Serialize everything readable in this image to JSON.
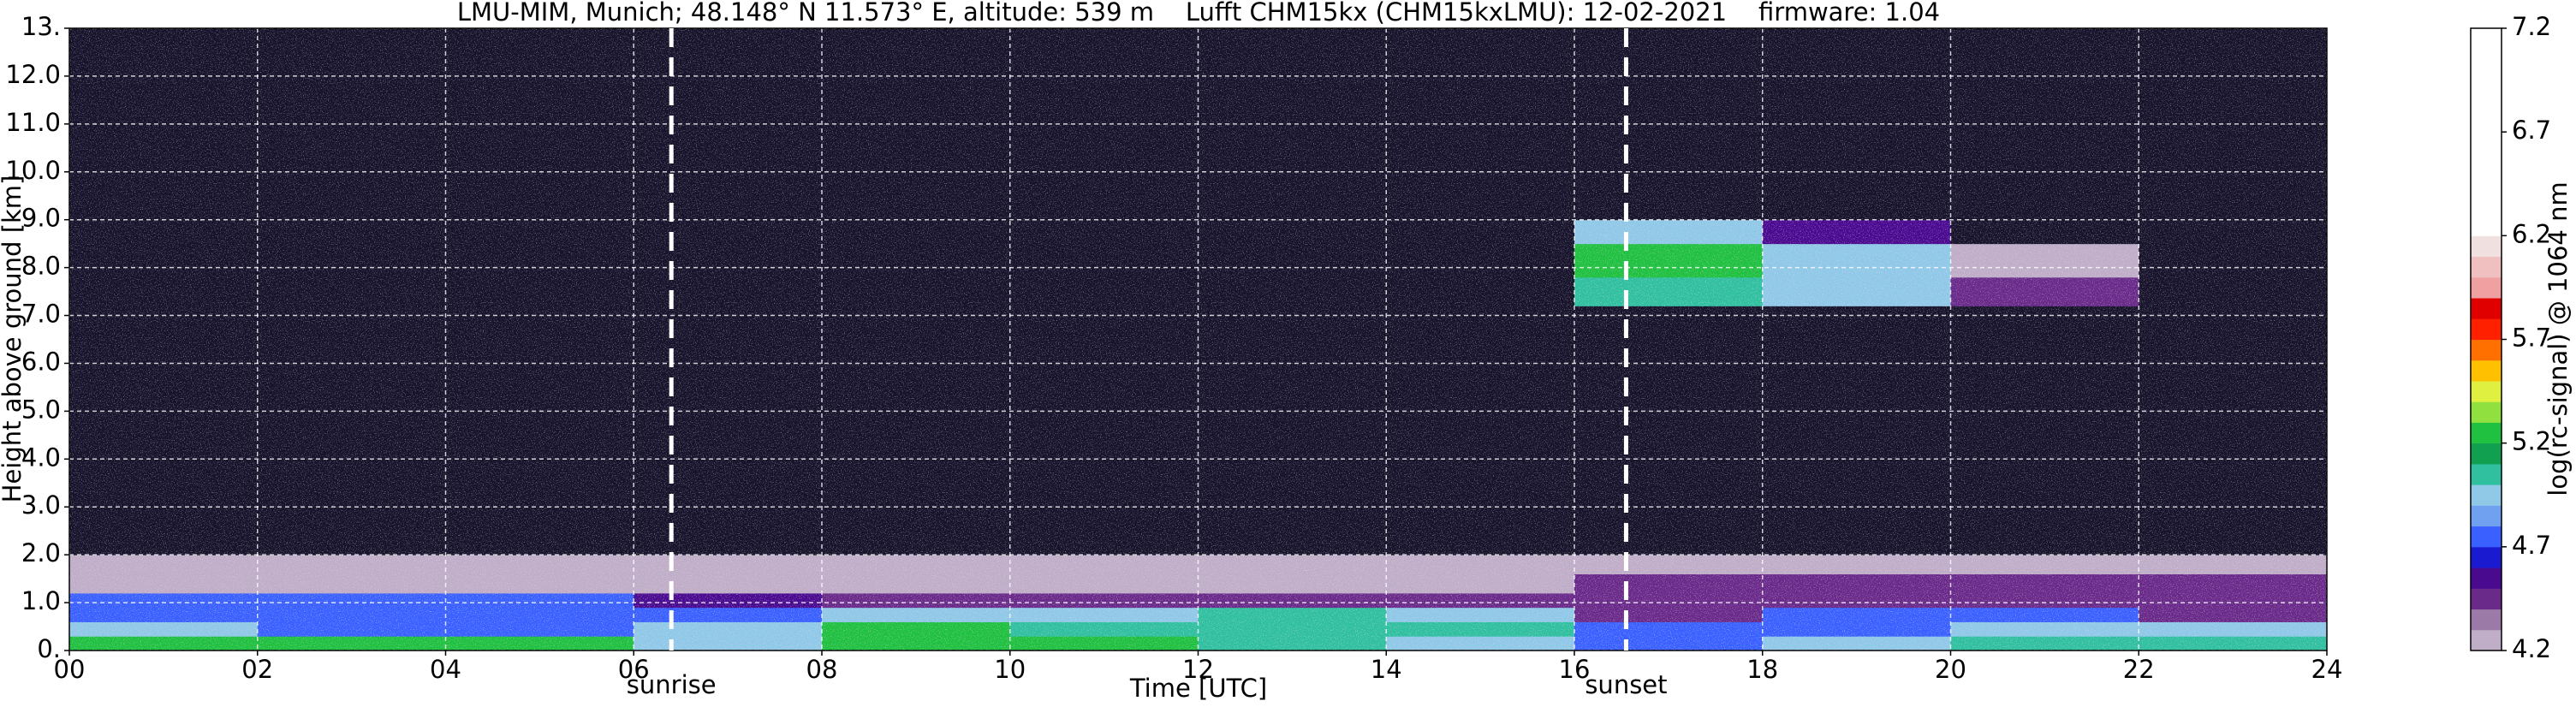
{
  "chart_data": {
    "type": "heatmap",
    "title": "LMU-MIM, Munich; 48.148° N 11.573° E, altitude: 539 m    Lufft CHM15kx (CHM15kxLMU): 12-02-2021    firmware: 1.04",
    "x_label": "Time [UTC]",
    "y_label": "Height above ground [km]",
    "colorbar_label": "log(rc-signal) @ 1064 nm",
    "xlim": [
      0,
      24
    ],
    "ylim": [
      0,
      13
    ],
    "xticks": [
      {
        "value": 0,
        "label": "00"
      },
      {
        "value": 2,
        "label": "02"
      },
      {
        "value": 4,
        "label": "04"
      },
      {
        "value": 6,
        "label": "06"
      },
      {
        "value": 8,
        "label": "08"
      },
      10,
      12,
      14,
      16,
      18,
      20,
      22,
      24
    ],
    "yticks": [
      {
        "value": 0,
        "label": "0."
      },
      {
        "value": 1,
        "label": "1.0"
      },
      {
        "value": 2,
        "label": "2.0"
      },
      {
        "value": 3,
        "label": "3.0"
      },
      {
        "value": 4,
        "label": "4.0"
      },
      {
        "value": 5,
        "label": "5.0"
      },
      {
        "value": 6,
        "label": "6.0"
      },
      {
        "value": 7,
        "label": "7.0"
      },
      {
        "value": 8,
        "label": "8.0"
      },
      {
        "value": 9,
        "label": "9.0"
      },
      {
        "value": 10,
        "label": "10.0"
      },
      {
        "value": 11,
        "label": "11.0"
      },
      {
        "value": 12,
        "label": "12.0"
      },
      {
        "value": 13,
        "label": "13."
      }
    ],
    "grid": true,
    "x_edges": [
      0,
      2,
      4,
      6,
      8,
      10,
      12,
      14,
      16,
      18,
      20,
      22,
      24
    ],
    "y_edges": [
      0,
      0.3,
      0.6,
      0.9,
      1.2,
      1.6,
      2,
      3,
      7.2,
      7.8,
      8.5,
      9,
      13
    ],
    "values": [
      [
        5.3,
        5.3,
        5.2,
        5.0,
        5.2,
        5.2,
        5.1,
        5.0,
        4.8,
        4.9,
        5.1,
        5.1
      ],
      [
        4.9,
        4.8,
        4.8,
        5.0,
        5.3,
        5.1,
        5.1,
        5.1,
        4.8,
        4.8,
        4.9,
        5.0
      ],
      [
        4.7,
        4.7,
        4.7,
        4.7,
        4.9,
        5.0,
        5.1,
        4.9,
        4.5,
        4.7,
        4.7,
        4.5
      ],
      [
        4.7,
        4.7,
        4.7,
        4.6,
        4.5,
        4.5,
        4.5,
        4.5,
        4.4,
        4.4,
        4.4,
        4.4
      ],
      [
        4.3,
        4.3,
        4.3,
        4.3,
        4.3,
        4.3,
        4.3,
        4.3,
        4.4,
        4.4,
        4.4,
        4.4
      ],
      [
        4.2,
        4.2,
        4.2,
        4.2,
        4.2,
        4.2,
        4.2,
        4.2,
        4.3,
        4.3,
        4.3,
        4.3
      ],
      [
        4.0,
        4.0,
        4.0,
        4.0,
        4.0,
        4.0,
        4.0,
        4.0,
        4.0,
        4.0,
        4.0,
        4.0
      ],
      [
        4.0,
        4.0,
        4.0,
        4.0,
        4.0,
        4.0,
        4.0,
        4.0,
        4.0,
        4.0,
        4.0,
        4.0
      ],
      [
        4.0,
        4.0,
        4.0,
        4.0,
        4.0,
        4.0,
        4.0,
        4.0,
        5.1,
        4.9,
        4.4,
        4.0
      ],
      [
        4.0,
        4.0,
        4.0,
        4.0,
        4.0,
        4.0,
        4.0,
        4.0,
        5.3,
        4.9,
        4.3,
        4.0
      ],
      [
        4.0,
        4.0,
        4.0,
        4.0,
        4.0,
        4.0,
        4.0,
        4.0,
        5.0,
        4.6,
        4.0,
        4.0
      ],
      [
        4.0,
        4.0,
        4.0,
        4.0,
        4.0,
        4.0,
        4.0,
        4.0,
        4.0,
        4.0,
        4.0,
        4.0
      ]
    ],
    "clim": [
      4.2,
      7.2
    ],
    "cticks": [
      4.2,
      4.7,
      5.2,
      5.7,
      6.2,
      6.7,
      7.2
    ],
    "colorscale": [
      "#c0adc8",
      "#9c7aa8",
      "#6a2a8a",
      "#4a0a90",
      "#1a1ad0",
      "#3a60ff",
      "#70a0f0",
      "#90c8e8",
      "#30c0a0",
      "#10a050",
      "#20c040",
      "#90e040",
      "#e0f040",
      "#ffc000",
      "#ff7000",
      "#ff2000",
      "#e00000",
      "#f0a0a0",
      "#f0c0c0",
      "#f0e0e0",
      "#ffffff",
      "#ffffff",
      "#ffffff",
      "#ffffff",
      "#ffffff",
      "#ffffff",
      "#ffffff",
      "#ffffff",
      "#ffffff",
      "#ffffff"
    ],
    "under_color": "#17132b",
    "annotations": [
      {
        "text": "sunrise",
        "x": 6.4
      },
      {
        "text": "sunset",
        "x": 16.55
      }
    ]
  }
}
